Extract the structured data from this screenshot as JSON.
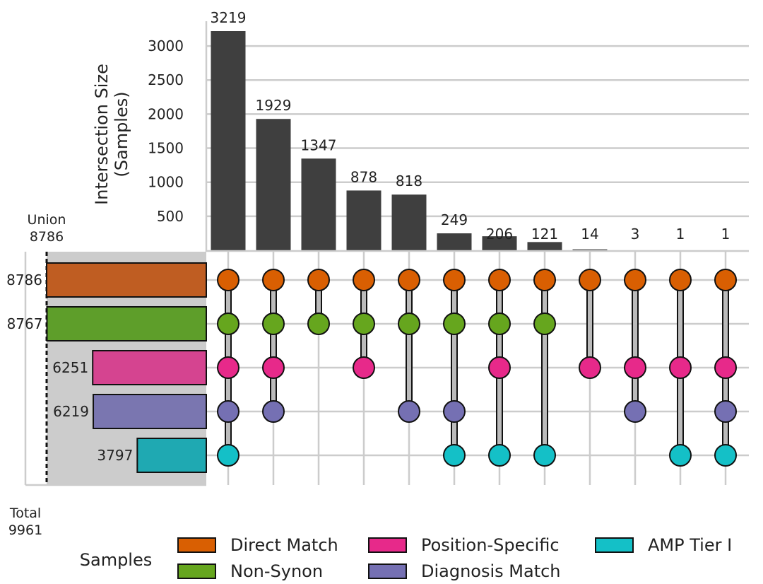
{
  "chart_data": {
    "type": "upset",
    "ylabel_line1": "Intersection Size",
    "ylabel_line2": "(Samples)",
    "ylim": [
      0,
      3300
    ],
    "yticks": [
      500,
      1000,
      1500,
      2000,
      2500,
      3000
    ],
    "grid": true,
    "sets": [
      {
        "name": "Direct Match",
        "size": 8786,
        "color": "#d95f02",
        "bar_color": "#bf5d22"
      },
      {
        "name": "Non-Synon",
        "size": 8767,
        "color": "#66a61e",
        "bar_color": "#5e9e2a"
      },
      {
        "name": "Position-Specific",
        "size": 6251,
        "color": "#e7298a",
        "bar_color": "#d54490"
      },
      {
        "name": "Diagnosis Match",
        "size": 6219,
        "color": "#7570b3",
        "bar_color": "#7a76b0"
      },
      {
        "name": "AMP Tier I",
        "size": 3797,
        "color": "#14c0c7",
        "bar_color": "#1fa9b2"
      }
    ],
    "intersections": [
      {
        "value": 3219,
        "label": "3219",
        "members": [
          0,
          1,
          2,
          3,
          4
        ]
      },
      {
        "value": 1929,
        "label": "1929",
        "members": [
          0,
          1,
          2,
          3
        ]
      },
      {
        "value": 1347,
        "label": "1347",
        "members": [
          0,
          1
        ]
      },
      {
        "value": 878,
        "label": "878",
        "members": [
          0,
          1,
          2
        ]
      },
      {
        "value": 818,
        "label": "818",
        "members": [
          0,
          1,
          3
        ]
      },
      {
        "value": 249,
        "label": "249",
        "members": [
          0,
          1,
          3,
          4
        ]
      },
      {
        "value": 206,
        "label": "206",
        "members": [
          0,
          1,
          2,
          4
        ]
      },
      {
        "value": 121,
        "label": "121",
        "members": [
          0,
          1,
          4
        ]
      },
      {
        "value": 14,
        "label": "14",
        "members": [
          0,
          2
        ]
      },
      {
        "value": 3,
        "label": "3",
        "members": [
          0,
          2,
          3
        ]
      },
      {
        "value": 1,
        "label": "1",
        "members": [
          0,
          2,
          4
        ]
      },
      {
        "value": 1,
        "label": "1",
        "members": [
          0,
          2,
          3,
          4
        ]
      }
    ],
    "union_label": "Union",
    "union_value": "8786",
    "total_label": "Total",
    "total_value": "9961",
    "legend_title": "Samples",
    "bar_color": "#3f3f3f"
  }
}
